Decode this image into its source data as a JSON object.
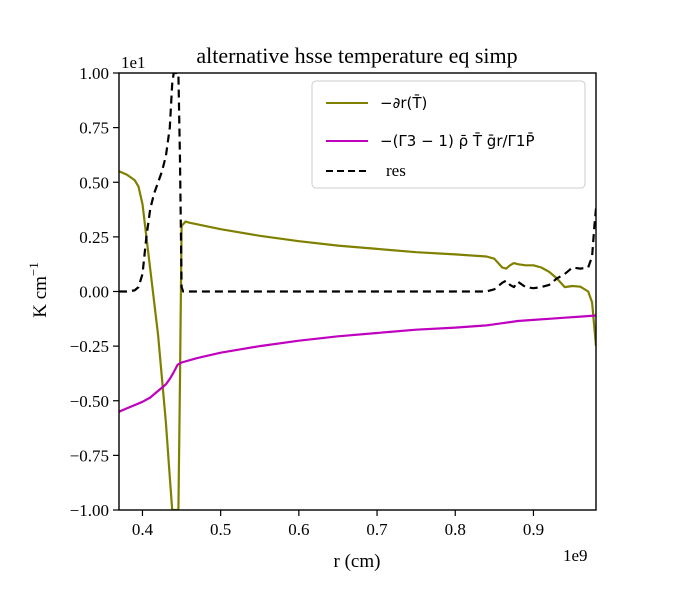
{
  "chart_data": {
    "type": "line",
    "title": "alternative hsse temperature eq simp",
    "xlabel": "r (cm)",
    "ylabel": "K cm",
    "ylabel_exponent": "−1",
    "x_offset_label": "1e9",
    "y_offset_label": "1e1",
    "xlim": [
      0.37,
      0.98
    ],
    "ylim": [
      -1.0,
      1.0
    ],
    "x_ticks": [
      0.4,
      0.5,
      0.6,
      0.7,
      0.8,
      0.9
    ],
    "x_tick_labels": [
      "0.4",
      "0.5",
      "0.6",
      "0.7",
      "0.8",
      "0.9"
    ],
    "y_ticks": [
      -1.0,
      -0.75,
      -0.5,
      -0.25,
      0.0,
      0.25,
      0.5,
      0.75,
      1.0
    ],
    "y_tick_labels": [
      "−1.00",
      "−0.75",
      "−0.50",
      "−0.25",
      "0.00",
      "0.25",
      "0.50",
      "0.75",
      "1.00"
    ],
    "grid": false,
    "legend_position": "upper-right",
    "series": [
      {
        "name": "−∂r(T̄)",
        "color": "#808000",
        "style": "solid",
        "x": [
          0.37,
          0.38,
          0.39,
          0.395,
          0.4,
          0.405,
          0.41,
          0.415,
          0.42,
          0.425,
          0.43,
          0.435,
          0.438,
          0.44,
          0.442,
          0.444,
          0.446,
          0.448,
          0.45,
          0.455,
          0.46,
          0.48,
          0.5,
          0.55,
          0.6,
          0.65,
          0.7,
          0.75,
          0.8,
          0.84,
          0.85,
          0.86,
          0.865,
          0.87,
          0.875,
          0.88,
          0.89,
          0.9,
          0.91,
          0.92,
          0.93,
          0.94,
          0.95,
          0.96,
          0.97,
          0.975,
          0.98
        ],
        "y": [
          0.55,
          0.535,
          0.51,
          0.48,
          0.4,
          0.25,
          0.1,
          -0.05,
          -0.2,
          -0.4,
          -0.6,
          -0.85,
          -1.0,
          -1.0,
          -1.0,
          -1.0,
          -1.0,
          -0.4,
          0.3,
          0.32,
          0.315,
          0.3,
          0.285,
          0.255,
          0.23,
          0.21,
          0.195,
          0.18,
          0.17,
          0.16,
          0.15,
          0.11,
          0.105,
          0.12,
          0.13,
          0.125,
          0.12,
          0.12,
          0.11,
          0.09,
          0.06,
          0.02,
          0.025,
          0.022,
          0.0,
          -0.05,
          -0.25
        ]
      },
      {
        "name": "−(Γ3 − 1) ρ̄ T̄ ḡr/Γ1P̄",
        "color": "#bf00bf",
        "style": "solid",
        "x": [
          0.37,
          0.38,
          0.39,
          0.4,
          0.41,
          0.42,
          0.43,
          0.435,
          0.44,
          0.445,
          0.45,
          0.47,
          0.5,
          0.55,
          0.6,
          0.65,
          0.7,
          0.75,
          0.8,
          0.84,
          0.85,
          0.86,
          0.87,
          0.88,
          0.9,
          0.92,
          0.94,
          0.96,
          0.98
        ],
        "y": [
          -0.55,
          -0.535,
          -0.52,
          -0.505,
          -0.485,
          -0.455,
          -0.425,
          -0.4,
          -0.37,
          -0.335,
          -0.325,
          -0.305,
          -0.28,
          -0.25,
          -0.225,
          -0.205,
          -0.19,
          -0.175,
          -0.165,
          -0.155,
          -0.15,
          -0.145,
          -0.14,
          -0.135,
          -0.13,
          -0.125,
          -0.12,
          -0.115,
          -0.11
        ]
      },
      {
        "name": "res",
        "color": "#000000",
        "style": "dashed",
        "x": [
          0.37,
          0.38,
          0.39,
          0.395,
          0.4,
          0.405,
          0.41,
          0.415,
          0.42,
          0.425,
          0.43,
          0.435,
          0.438,
          0.44,
          0.442,
          0.444,
          0.446,
          0.448,
          0.45,
          0.452,
          0.455,
          0.46,
          0.5,
          0.6,
          0.7,
          0.8,
          0.84,
          0.85,
          0.86,
          0.865,
          0.87,
          0.875,
          0.88,
          0.89,
          0.9,
          0.91,
          0.92,
          0.93,
          0.94,
          0.95,
          0.96,
          0.97,
          0.975,
          0.978,
          0.98
        ],
        "y": [
          0.0,
          0.0,
          0.005,
          0.02,
          0.08,
          0.25,
          0.38,
          0.45,
          0.5,
          0.55,
          0.62,
          0.75,
          0.95,
          1.0,
          1.0,
          1.0,
          1.0,
          0.6,
          0.02,
          0.0,
          0.0,
          0.0,
          0.0,
          0.0,
          0.0,
          0.0,
          0.0,
          0.01,
          0.04,
          0.05,
          0.03,
          0.02,
          0.045,
          0.02,
          0.015,
          0.02,
          0.03,
          0.06,
          0.08,
          0.11,
          0.105,
          0.11,
          0.16,
          0.3,
          0.38
        ]
      }
    ]
  }
}
